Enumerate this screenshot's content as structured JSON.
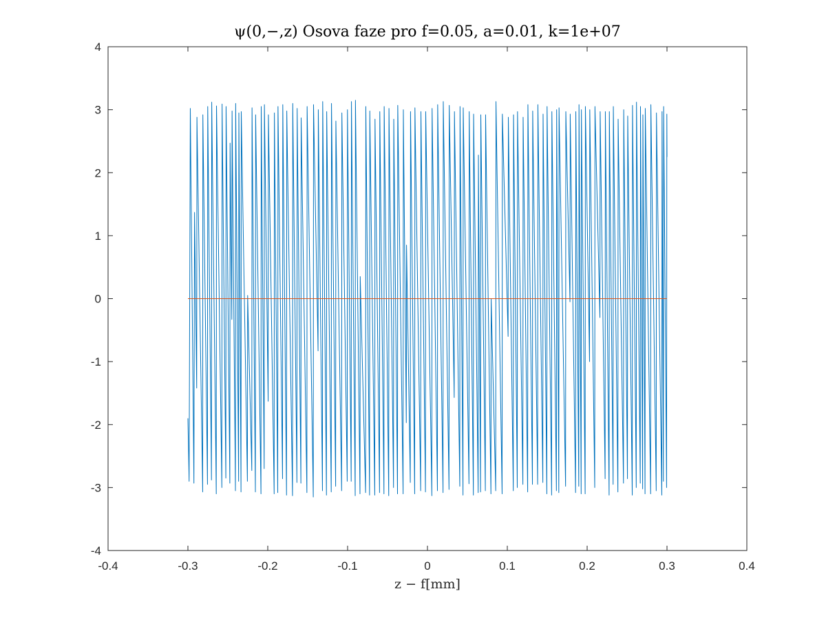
{
  "chart_data": {
    "type": "line",
    "title": "ψ(0,−,z) Osova faze pro f=0.05, a=0.01, k=1e+07",
    "xlabel": "z − f[mm]",
    "ylabel": "",
    "xlim": [
      -0.4,
      0.4
    ],
    "ylim": [
      -4,
      4
    ],
    "xticks": [
      -0.4,
      -0.3,
      -0.2,
      -0.1,
      0,
      0.1,
      0.2,
      0.3,
      0.4
    ],
    "yticks": [
      -4,
      -3,
      -2,
      -1,
      0,
      1,
      2,
      3,
      4
    ],
    "xtick_labels": [
      "-0.4",
      "-0.3",
      "-0.2",
      "-0.1",
      "0",
      "0.1",
      "0.2",
      "0.3",
      "0.4"
    ],
    "ytick_labels": [
      "-4",
      "-3",
      "-2",
      "-1",
      "0",
      "1",
      "2",
      "3",
      "4"
    ],
    "grid": false,
    "legend": "none",
    "series": [
      {
        "color": "#0072BD",
        "description": "wrapped phase sawtooth between -π and π",
        "x": [
          -0.3,
          -0.2985,
          -0.297,
          -0.2925,
          -0.2917,
          -0.289,
          -0.2887,
          -0.2815,
          -0.2813,
          -0.2755,
          -0.2752,
          -0.2705,
          -0.2702,
          -0.2645,
          -0.2642,
          -0.2575,
          -0.2572,
          -0.2525,
          -0.2522,
          -0.2475,
          -0.2472,
          -0.245,
          -0.2447,
          -0.2405,
          -0.2402,
          -0.2365,
          -0.2362,
          -0.2335,
          -0.2332,
          -0.2255,
          -0.2252,
          -0.22,
          -0.2197,
          -0.2155,
          -0.2152,
          -0.2085,
          -0.2082,
          -0.2045,
          -0.2042,
          -0.1995,
          -0.1992,
          -0.192,
          -0.1917,
          -0.1875,
          -0.1872,
          -0.1815,
          -0.1812,
          -0.1765,
          -0.1762,
          -0.169,
          -0.1687,
          -0.1635,
          -0.1632,
          -0.1585,
          -0.1582,
          -0.151,
          -0.1507,
          -0.143,
          -0.1427,
          -0.137,
          -0.1367,
          -0.1315,
          -0.1312,
          -0.1265,
          -0.1262,
          -0.1205,
          -0.1202,
          -0.115,
          -0.1147,
          -0.1075,
          -0.1072,
          -0.1005,
          -0.1002,
          -0.0955,
          -0.0952,
          -0.0905,
          -0.0902,
          -0.0845,
          -0.0842,
          -0.0775,
          -0.0772,
          -0.0725,
          -0.0722,
          -0.066,
          -0.0657,
          -0.06,
          -0.0597,
          -0.0545,
          -0.0542,
          -0.0485,
          -0.0482,
          -0.0425,
          -0.0422,
          -0.0375,
          -0.0372,
          -0.0305,
          -0.0302,
          -0.0265,
          -0.0262,
          -0.0215,
          -0.0212,
          -0.016,
          -0.0157,
          -0.0085,
          -0.0082,
          -0.0025,
          -0.0022,
          0.0055,
          0.0058,
          0.0125,
          0.0128,
          0.0195,
          0.0198,
          0.027,
          0.0273,
          0.0335,
          0.0338,
          0.0405,
          0.0408,
          0.0445,
          0.0448,
          0.052,
          0.0523,
          0.0575,
          0.0578,
          0.0635,
          0.0638,
          0.0665,
          0.0668,
          0.0725,
          0.0728,
          0.0795,
          0.0798,
          0.0855,
          0.0858,
          0.0935,
          0.0938,
          0.101,
          0.1013,
          0.1075,
          0.1078,
          0.1125,
          0.1128,
          0.1195,
          0.1198,
          0.1255,
          0.1258,
          0.1315,
          0.1318,
          0.138,
          0.1383,
          0.1445,
          0.1448,
          0.1495,
          0.1498,
          0.1555,
          0.1558,
          0.1615,
          0.1618,
          0.1645,
          0.1648,
          0.173,
          0.1733,
          0.1785,
          0.1788,
          0.1855,
          0.1858,
          0.1895,
          0.1898,
          0.1925,
          0.1928,
          0.1975,
          0.1978,
          0.203,
          0.2033,
          0.2095,
          0.2098,
          0.216,
          0.2163,
          0.2225,
          0.2228,
          0.2275,
          0.2278,
          0.2325,
          0.2328,
          0.2385,
          0.2388,
          0.2455,
          0.2458,
          0.2505,
          0.2508,
          0.2565,
          0.2568,
          0.2615,
          0.2618,
          0.2665,
          0.2668,
          0.2695,
          0.2698,
          0.2725,
          0.2728,
          0.2795,
          0.2798,
          0.2865,
          0.2868,
          0.2935,
          0.2938,
          0.2955,
          0.2958,
          0.2995,
          0.2998,
          0.3
        ],
        "y": [
          -1.9,
          -2.9,
          3.02,
          -2.93,
          1.37,
          -1.42,
          2.88,
          -3.07,
          2.92,
          -2.95,
          3.05,
          -2.88,
          3.12,
          -3.1,
          3.06,
          -3.0,
          3.09,
          -2.85,
          3.05,
          -2.93,
          2.47,
          -0.33,
          2.98,
          -3.05,
          3.1,
          -2.9,
          2.95,
          -3.07,
          2.97,
          -2.9,
          0.05,
          -2.73,
          3.03,
          -3.07,
          2.92,
          -3.1,
          3.05,
          -2.7,
          3.08,
          -1.63,
          2.92,
          -3.1,
          2.95,
          -3.08,
          3.05,
          -2.86,
          3.08,
          -3.12,
          2.98,
          -3.13,
          3.1,
          -2.92,
          3.02,
          -2.93,
          2.87,
          -3.08,
          3.05,
          -3.15,
          3.08,
          -0.83,
          3.0,
          -3.05,
          3.13,
          -3.12,
          2.97,
          -3.07,
          3.1,
          -2.98,
          2.82,
          -3.05,
          2.95,
          -2.9,
          3.0,
          -2.9,
          3.13,
          -3.13,
          3.15,
          -3.1,
          0.35,
          -3.08,
          3.05,
          -3.12,
          2.98,
          -3.12,
          2.85,
          -3.08,
          2.97,
          -3.1,
          3.05,
          -3.13,
          3.02,
          -3.0,
          2.85,
          -3.1,
          3.07,
          -3.1,
          3.0,
          -1.97,
          0.85,
          -2.92,
          2.97,
          -3.1,
          3.03,
          -3.05,
          2.97,
          -3.07,
          2.97,
          -3.13,
          3.02,
          -3.05,
          3.08,
          -3.08,
          3.13,
          -3.03,
          3.07,
          -1.57,
          2.97,
          -2.98,
          3.05,
          -3.12,
          3.03,
          -2.94,
          2.97,
          -3.12,
          2.93,
          -3.08,
          2.28,
          -3.07,
          2.92,
          -3.05,
          2.92,
          -3.1,
          0.0,
          -3.05,
          3.13,
          -3.1,
          2.93,
          -0.6,
          2.88,
          -3.05,
          2.92,
          -3.0,
          2.97,
          -2.95,
          2.88,
          -3.07,
          3.08,
          -2.95,
          2.98,
          -2.95,
          3.08,
          -2.92,
          2.93,
          -3.1,
          3.05,
          -3.12,
          2.97,
          -3.05,
          3.0,
          -3.08,
          3.03,
          -2.98,
          2.97,
          -0.05,
          2.93,
          -3.08,
          2.97,
          -2.98,
          3.08,
          -3.1,
          3.0,
          -3.1,
          3.05,
          -1.0,
          3.0,
          -3.0,
          3.05,
          -0.3,
          2.97,
          -2.86,
          2.97,
          -3.12,
          2.97,
          -2.95,
          3.05,
          -3.07,
          2.85,
          -2.93,
          3.0,
          -2.86,
          2.9,
          -3.12,
          3.07,
          -3.0,
          3.12,
          -2.93,
          3.05,
          -3.02,
          2.92,
          -3.1,
          3.02,
          -3.1,
          3.08,
          -3.05,
          2.95,
          -3.12,
          2.97,
          -2.9,
          3.05,
          -3.0,
          2.93,
          2.25
        ]
      },
      {
        "color": "#D95319",
        "description": "zero reference line",
        "x": [
          -0.3,
          0.3
        ],
        "y": [
          0,
          0
        ]
      }
    ]
  }
}
